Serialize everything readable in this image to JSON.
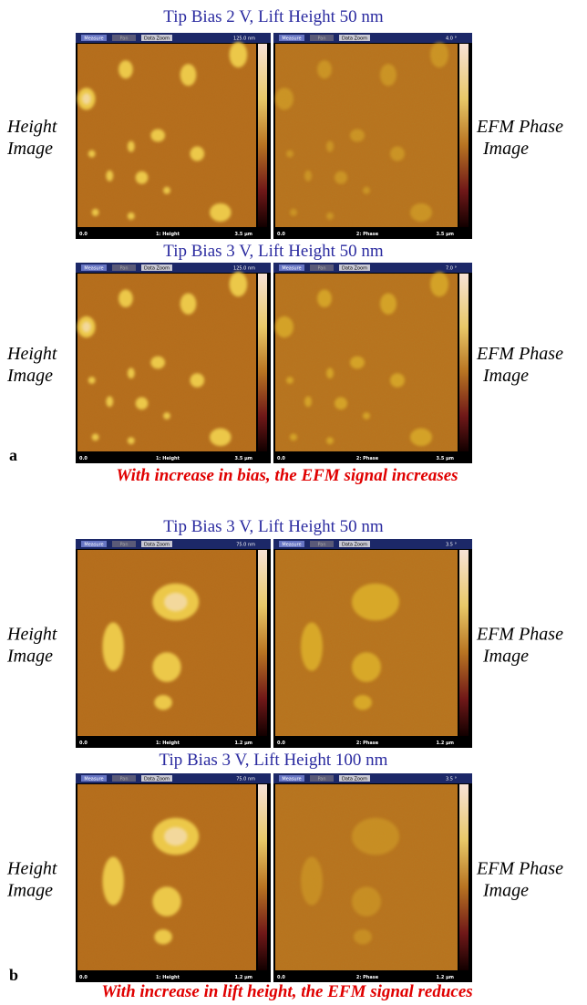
{
  "panels": [
    {
      "label": "a",
      "caption": "With increase in bias, the EFM signal increases",
      "rows": [
        {
          "title": "Tip Bias 2 V, Lift Height 50 nm",
          "left_label": [
            "Height",
            "Image"
          ],
          "right_label": [
            "EFM Phase",
            "Image"
          ],
          "images": [
            {
              "buttons": [
                "Measure",
                "Pan",
                "Data Zoom"
              ],
              "scale_max": "125.0 nm",
              "scale_min": "0.0",
              "channel": "1: Height",
              "size": "3.5 µm"
            },
            {
              "buttons": [
                "Measure",
                "Pan",
                "Data Zoom"
              ],
              "scale_max": "4.0 °",
              "scale_min": "0.0",
              "channel": "2: Phase",
              "size": "3.5 µm"
            }
          ]
        },
        {
          "title": "Tip Bias 3 V, Lift Height 50 nm",
          "left_label": [
            "Height",
            "Image"
          ],
          "right_label": [
            "EFM Phase",
            "Image"
          ],
          "images": [
            {
              "buttons": [
                "Measure",
                "Pan",
                "Data Zoom"
              ],
              "scale_max": "125.0 nm",
              "scale_min": "0.0",
              "channel": "1: Height",
              "size": "3.5 µm"
            },
            {
              "buttons": [
                "Measure",
                "Pan",
                "Data Zoom"
              ],
              "scale_max": "7.0 °",
              "scale_min": "0.0",
              "channel": "2: Phase",
              "size": "3.5 µm"
            }
          ]
        }
      ]
    },
    {
      "label": "b",
      "caption": "With increase in lift height, the EFM signal reduces",
      "rows": [
        {
          "title": "Tip Bias 3 V, Lift Height 50 nm",
          "left_label": [
            "Height",
            "Image"
          ],
          "right_label": [
            "EFM Phase",
            "Image"
          ],
          "images": [
            {
              "buttons": [
                "Measure",
                "Pan",
                "Data Zoom"
              ],
              "scale_max": "75.0 nm",
              "scale_min": "0.0",
              "channel": "1: Height",
              "size": "1.2 µm"
            },
            {
              "buttons": [
                "Measure",
                "Pan",
                "Data Zoom"
              ],
              "scale_max": "3.5 °",
              "scale_min": "0.0",
              "channel": "2: Phase",
              "size": "1.2 µm"
            }
          ]
        },
        {
          "title": "Tip Bias 3 V, Lift Height 100 nm",
          "left_label": [
            "Height",
            "Image"
          ],
          "right_label": [
            "EFM Phase",
            "Image"
          ],
          "images": [
            {
              "buttons": [
                "Measure",
                "Pan",
                "Data Zoom"
              ],
              "scale_max": "75.0 nm",
              "scale_min": "0.0",
              "channel": "1: Height",
              "size": "1.2 µm"
            },
            {
              "buttons": [
                "Measure",
                "Pan",
                "Data Zoom"
              ],
              "scale_max": "3.5 °",
              "scale_min": "0.0",
              "channel": "2: Phase",
              "size": "1.2 µm"
            }
          ]
        }
      ]
    }
  ]
}
